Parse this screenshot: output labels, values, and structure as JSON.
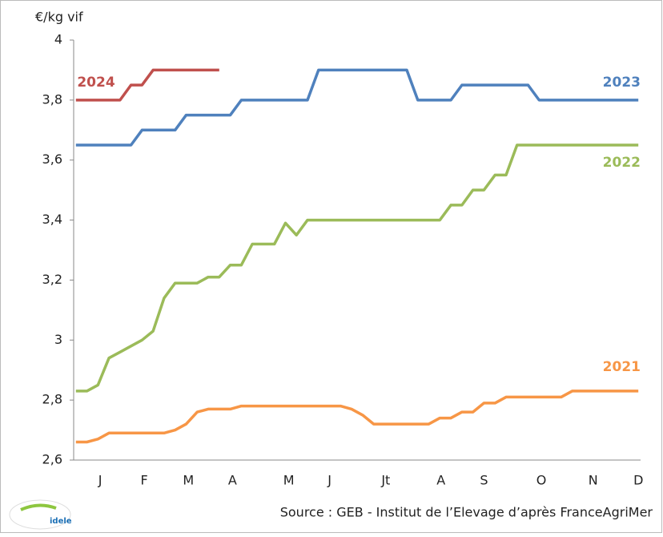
{
  "chart_data": {
    "type": "line",
    "y_label": "€/kg vif",
    "source": "Source : GEB - Institut de l’Elevage d’après FranceAgriMer",
    "logo": "idele",
    "x": [
      1,
      2,
      3,
      4,
      5,
      6,
      7,
      8,
      9,
      10,
      11,
      12,
      13,
      14,
      15,
      16,
      17,
      18,
      19,
      20,
      21,
      22,
      23,
      24,
      25,
      26,
      27,
      28,
      29,
      30,
      31,
      32,
      33,
      34,
      35,
      36,
      37,
      38,
      39,
      40,
      41,
      42,
      43,
      44,
      45,
      46,
      47,
      48,
      49,
      50,
      51,
      52
    ],
    "xlim": [
      0.8,
      52.2
    ],
    "xticks": [
      {
        "value": 3.2,
        "label": "J"
      },
      {
        "value": 7.2,
        "label": "F"
      },
      {
        "value": 11.2,
        "label": "M"
      },
      {
        "value": 15.2,
        "label": "A"
      },
      {
        "value": 20.3,
        "label": "M"
      },
      {
        "value": 24,
        "label": "J"
      },
      {
        "value": 29.1,
        "label": "Jt"
      },
      {
        "value": 34.1,
        "label": "A"
      },
      {
        "value": 38,
        "label": "S"
      },
      {
        "value": 43.2,
        "label": "O"
      },
      {
        "value": 47.9,
        "label": "N"
      },
      {
        "value": 52,
        "label": "D"
      }
    ],
    "ylim": [
      2.6,
      4
    ],
    "yticks": [
      {
        "value": 2.6,
        "label": "2,6"
      },
      {
        "value": 2.8,
        "label": "2,8"
      },
      3,
      {
        "value": 3.2,
        "label": "3,2"
      },
      {
        "value": 3.4,
        "label": "3,4"
      },
      {
        "value": 3.6,
        "label": "3,6"
      },
      {
        "value": 3.8,
        "label": "3,8"
      },
      4
    ],
    "series": [
      {
        "name": "2024",
        "color": "#c0504d",
        "values": [
          3.8,
          3.8,
          3.8,
          3.8,
          3.8,
          3.85,
          3.85,
          3.9,
          3.9,
          3.9,
          3.9,
          3.9,
          3.9,
          3.9,
          null,
          null,
          null,
          null,
          null,
          null,
          null,
          null,
          null,
          null,
          null,
          null,
          null,
          null,
          null,
          null,
          null,
          null,
          null,
          null,
          null,
          null,
          null,
          null,
          null,
          null,
          null,
          null,
          null,
          null,
          null,
          null,
          null,
          null,
          null,
          null,
          null,
          null
        ]
      },
      {
        "name": "2023",
        "color": "#4f81bd",
        "values": [
          3.65,
          3.65,
          3.65,
          3.65,
          3.65,
          3.65,
          3.7,
          3.7,
          3.7,
          3.7,
          3.75,
          3.75,
          3.75,
          3.75,
          3.75,
          3.8,
          3.8,
          3.8,
          3.8,
          3.8,
          3.8,
          3.8,
          3.9,
          3.9,
          3.9,
          3.9,
          3.9,
          3.9,
          3.9,
          3.9,
          3.9,
          3.8,
          3.8,
          3.8,
          3.8,
          3.85,
          3.85,
          3.85,
          3.85,
          3.85,
          3.85,
          3.85,
          3.8,
          3.8,
          3.8,
          3.8,
          3.8,
          3.8,
          3.8,
          3.8,
          3.8,
          3.8
        ]
      },
      {
        "name": "2022",
        "color": "#9bbb59",
        "values": [
          2.83,
          2.83,
          2.85,
          2.94,
          2.96,
          2.98,
          3.0,
          3.03,
          3.14,
          3.19,
          3.19,
          3.19,
          3.21,
          3.21,
          3.25,
          3.25,
          3.32,
          3.32,
          3.32,
          3.39,
          3.35,
          3.4,
          3.4,
          3.4,
          3.4,
          3.4,
          3.4,
          3.4,
          3.4,
          3.4,
          3.4,
          3.4,
          3.4,
          3.4,
          3.45,
          3.45,
          3.5,
          3.5,
          3.55,
          3.55,
          3.65,
          3.65,
          3.65,
          3.65,
          3.65,
          3.65,
          3.65,
          3.65,
          3.65,
          3.65,
          3.65,
          3.65
        ]
      },
      {
        "name": "2021",
        "color": "#f79646",
        "values": [
          2.66,
          2.66,
          2.67,
          2.69,
          2.69,
          2.69,
          2.69,
          2.69,
          2.69,
          2.7,
          2.72,
          2.76,
          2.77,
          2.77,
          2.77,
          2.78,
          2.78,
          2.78,
          2.78,
          2.78,
          2.78,
          2.78,
          2.78,
          2.78,
          2.78,
          2.77,
          2.75,
          2.72,
          2.72,
          2.72,
          2.72,
          2.72,
          2.72,
          2.74,
          2.74,
          2.76,
          2.76,
          2.79,
          2.79,
          2.81,
          2.81,
          2.81,
          2.81,
          2.81,
          2.81,
          2.83,
          2.83,
          2.83,
          2.83,
          2.83,
          2.83,
          2.83
        ]
      }
    ]
  }
}
